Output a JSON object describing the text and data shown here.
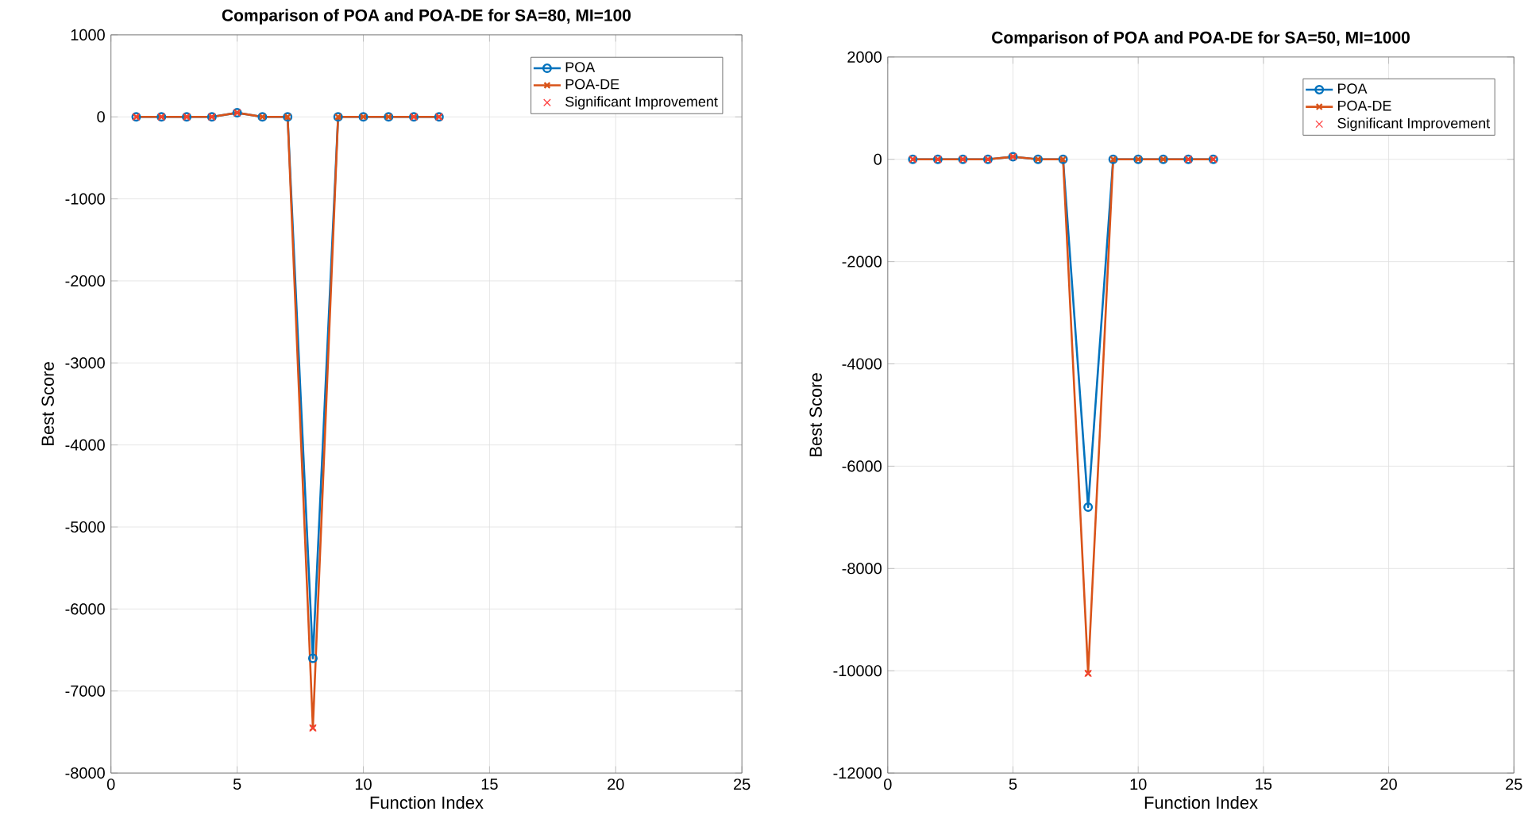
{
  "chart_data": [
    {
      "type": "line",
      "title": "Comparison of POA and POA-DE for SA=80, MI=100",
      "xlabel": "Function Index",
      "ylabel": "Best Score",
      "x": [
        1,
        2,
        3,
        4,
        5,
        6,
        7,
        8,
        9,
        10,
        11,
        12,
        13
      ],
      "xlim": [
        0,
        25
      ],
      "xticks": [
        0,
        5,
        10,
        15,
        20,
        25
      ],
      "ylim": [
        -8000,
        1000
      ],
      "yticks": [
        -8000,
        -7000,
        -6000,
        -5000,
        -4000,
        -3000,
        -2000,
        -1000,
        0,
        1000
      ],
      "grid": true,
      "legend": "top right",
      "series": [
        {
          "name": "POA",
          "color": "#0072bd",
          "marker": "circle",
          "values": [
            0,
            0,
            0,
            0,
            50,
            0,
            0,
            -6600,
            0,
            0,
            0,
            0,
            0
          ]
        },
        {
          "name": "POA-DE",
          "color": "#d95319",
          "marker": "cross",
          "values": [
            0,
            0,
            0,
            0,
            50,
            0,
            0,
            -7450,
            0,
            0,
            0,
            0,
            0
          ]
        },
        {
          "name": "Significant Improvement",
          "type": "scatter",
          "color": "#ff3b3b",
          "marker": "cross",
          "x": [
            1,
            2,
            3,
            4,
            5,
            8,
            12,
            13
          ],
          "values": [
            0,
            0,
            0,
            0,
            50,
            -7450,
            0,
            0
          ]
        }
      ]
    },
    {
      "type": "line",
      "title": "Comparison of POA and POA-DE for SA=50, MI=1000",
      "xlabel": "Function Index",
      "ylabel": "Best Score",
      "x": [
        1,
        2,
        3,
        4,
        5,
        6,
        7,
        8,
        9,
        10,
        11,
        12,
        13
      ],
      "xlim": [
        0,
        25
      ],
      "xticks": [
        0,
        5,
        10,
        15,
        20,
        25
      ],
      "ylim": [
        -12000,
        2000
      ],
      "yticks": [
        -12000,
        -10000,
        -8000,
        -6000,
        -4000,
        -2000,
        0,
        2000
      ],
      "grid": true,
      "legend": "top right",
      "series": [
        {
          "name": "POA",
          "color": "#0072bd",
          "marker": "circle",
          "values": [
            0,
            0,
            0,
            0,
            50,
            0,
            0,
            -6800,
            0,
            0,
            0,
            0,
            0
          ]
        },
        {
          "name": "POA-DE",
          "color": "#d95319",
          "marker": "cross",
          "values": [
            0,
            0,
            0,
            0,
            50,
            0,
            0,
            -10050,
            0,
            0,
            0,
            0,
            0
          ]
        },
        {
          "name": "Significant Improvement",
          "type": "scatter",
          "color": "#ff3b3b",
          "marker": "cross",
          "x": [
            1,
            2,
            3,
            4,
            5,
            8,
            12,
            13
          ],
          "values": [
            0,
            0,
            0,
            0,
            50,
            -10050,
            0,
            0
          ]
        }
      ]
    }
  ]
}
